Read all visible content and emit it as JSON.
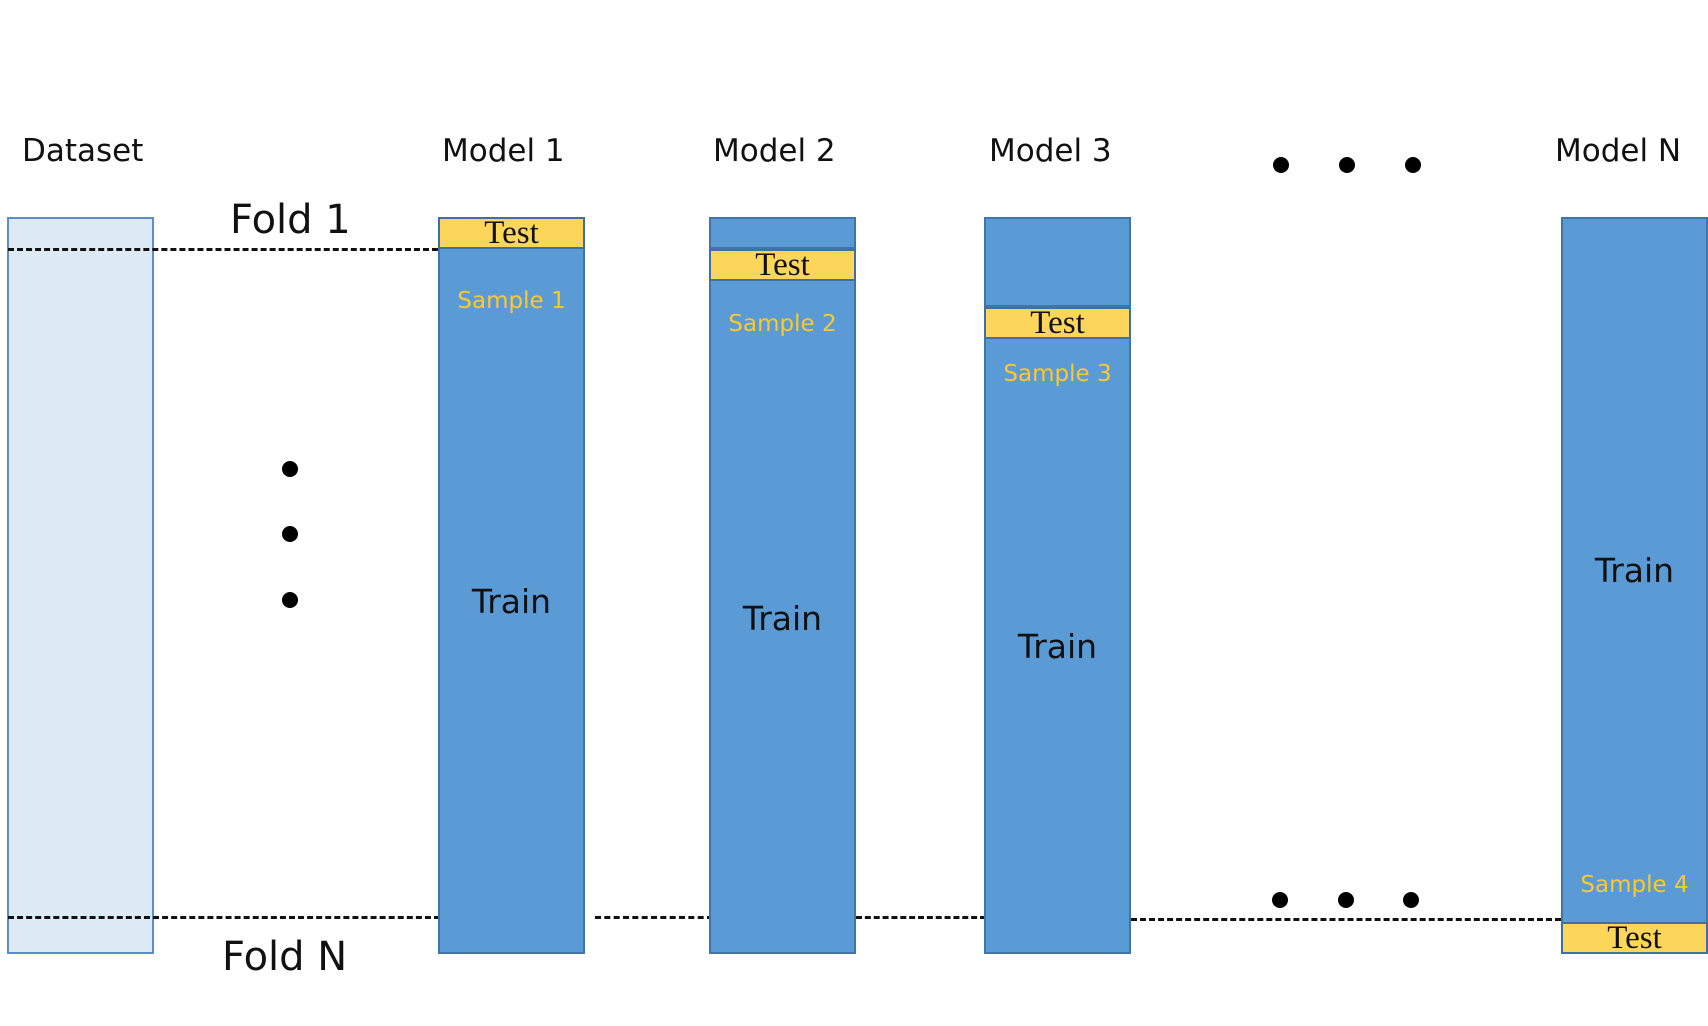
{
  "headers": {
    "dataset": "Dataset",
    "model_1": "Model 1",
    "model_2": "Model 2",
    "model_3": "Model 3",
    "model_n": "Model N"
  },
  "folds": {
    "first": "Fold 1",
    "last": "Fold N"
  },
  "models": [
    {
      "test_label": "Test",
      "sample_label": "Sample 1",
      "train_label": "Train"
    },
    {
      "test_label": "Test",
      "sample_label": "Sample 2",
      "train_label": "Train"
    },
    {
      "test_label": "Test",
      "sample_label": "Sample 3",
      "train_label": "Train"
    },
    {
      "test_label": "Test",
      "sample_label": "Sample 4",
      "train_label": "Train"
    }
  ],
  "colors": {
    "dataset_fill": "#ddeaf6",
    "train_fill": "#5b9bd5",
    "test_fill": "#fcd65a",
    "sample_text": "#fcc82a"
  }
}
